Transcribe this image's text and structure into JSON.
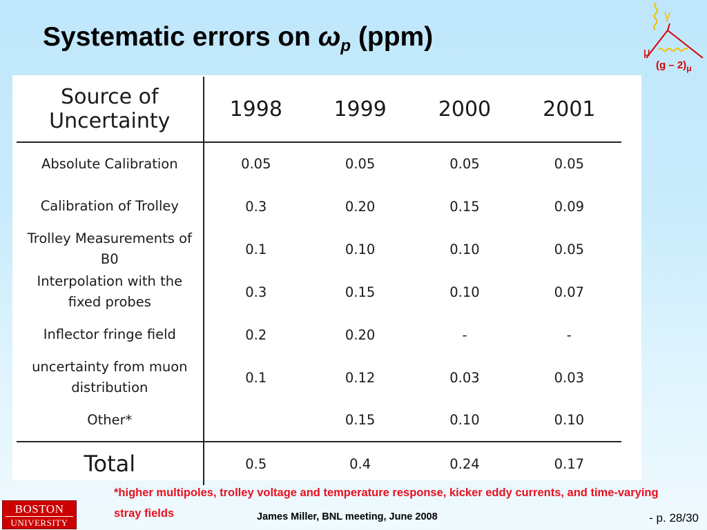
{
  "title": {
    "text": "Systematic errors on ",
    "symbol": "ω",
    "subscript": "p",
    "suffix": " (ppm)"
  },
  "logo": {
    "gamma": "γ",
    "mu": "μ",
    "label": "(g – 2)",
    "label_sub": "μ"
  },
  "table": {
    "header": {
      "source": "Source of Uncertainty",
      "years": [
        "1998",
        "1999",
        "2000",
        "2001"
      ]
    },
    "rows": [
      {
        "source": "Absolute Calibration",
        "values": [
          "0.05",
          "0.05",
          "0.05",
          "0.05"
        ]
      },
      {
        "source": "Calibration of Trolley",
        "values": [
          "0.3",
          "0.20",
          "0.15",
          "0.09"
        ]
      },
      {
        "source": "Trolley Measurements of B0",
        "values": [
          "0.1",
          "0.10",
          "0.10",
          "0.05"
        ]
      },
      {
        "source": "Interpolation with the fixed probes",
        "values": [
          "0.3",
          "0.15",
          "0.10",
          "0.07"
        ]
      },
      {
        "source": "Inflector fringe field",
        "values": [
          "0.2",
          "0.20",
          "-",
          "-"
        ]
      },
      {
        "source": "uncertainty from muon distribution",
        "values": [
          "0.1",
          "0.12",
          "0.03",
          "0.03"
        ]
      },
      {
        "source": "Other*",
        "values": [
          "",
          "0.15",
          "0.10",
          "0.10"
        ]
      }
    ],
    "total": {
      "source": "Total",
      "values": [
        "0.5",
        "0.4",
        "0.24",
        "0.17"
      ]
    }
  },
  "footnote": "*higher multipoles, trolley voltage and temperature response, kicker eddy currents, and time-varying stray fields",
  "credit": "James Miller,  BNL meeting, June 2008",
  "page": "- p. 28/30",
  "university": {
    "line1": "BOSTON",
    "line2": "UNIVERSITY"
  },
  "colors": {
    "background": "#c9ecfc",
    "footnote": "#e8101e",
    "logo_red": "#cc0000",
    "logo_yellow": "#f2c200"
  }
}
